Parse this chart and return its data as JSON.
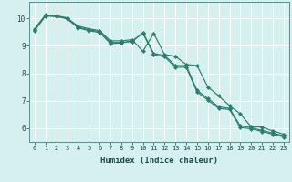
{
  "title": "",
  "xlabel": "Humidex (Indice chaleur)",
  "ylabel": "",
  "bg_color": "#d6f0f0",
  "line_color": "#2d7d6e",
  "grid_color": "#ffffff",
  "xlim": [
    -0.5,
    23.5
  ],
  "ylim": [
    5.5,
    10.6
  ],
  "yticks": [
    6,
    7,
    8,
    9,
    10
  ],
  "xticks": [
    0,
    1,
    2,
    3,
    4,
    5,
    6,
    7,
    8,
    9,
    10,
    11,
    12,
    13,
    14,
    15,
    16,
    17,
    18,
    19,
    20,
    21,
    22,
    23
  ],
  "series1_x": [
    0,
    1,
    2,
    3,
    4,
    5,
    6,
    7,
    8,
    9,
    10,
    11,
    12,
    13,
    14,
    15,
    16,
    17,
    18,
    19,
    20,
    21,
    22,
    23
  ],
  "series1_y": [
    9.62,
    10.12,
    10.1,
    10.0,
    9.72,
    9.62,
    9.55,
    9.18,
    9.18,
    9.22,
    8.8,
    9.45,
    8.68,
    8.62,
    8.32,
    8.28,
    7.5,
    7.18,
    6.82,
    6.52,
    6.05,
    6.04,
    5.9,
    5.78
  ],
  "series2_x": [
    0,
    1,
    2,
    3,
    4,
    5,
    6,
    7,
    8,
    9,
    10,
    11,
    12,
    13,
    14,
    15,
    16,
    17,
    18,
    19,
    20,
    21,
    22,
    23
  ],
  "series2_y": [
    9.58,
    10.1,
    10.08,
    10.02,
    9.68,
    9.58,
    9.52,
    9.12,
    9.12,
    9.15,
    9.48,
    8.72,
    8.65,
    8.28,
    8.28,
    7.38,
    7.08,
    6.78,
    6.72,
    6.08,
    6.02,
    5.92,
    5.82,
    5.72
  ],
  "series3_x": [
    0,
    1,
    2,
    3,
    4,
    5,
    6,
    7,
    8,
    9,
    10,
    11,
    12,
    13,
    14,
    15,
    16,
    17,
    18,
    19,
    20,
    21,
    22,
    23
  ],
  "series3_y": [
    9.55,
    10.08,
    10.06,
    9.98,
    9.65,
    9.55,
    9.48,
    9.08,
    9.1,
    9.18,
    9.45,
    8.68,
    8.6,
    8.22,
    8.22,
    7.32,
    7.02,
    6.72,
    6.68,
    6.02,
    5.98,
    5.88,
    5.78,
    5.68
  ],
  "marker_size": 2.2,
  "linewidth": 0.85,
  "tick_fontsize": 5.0,
  "xlabel_fontsize": 6.5
}
